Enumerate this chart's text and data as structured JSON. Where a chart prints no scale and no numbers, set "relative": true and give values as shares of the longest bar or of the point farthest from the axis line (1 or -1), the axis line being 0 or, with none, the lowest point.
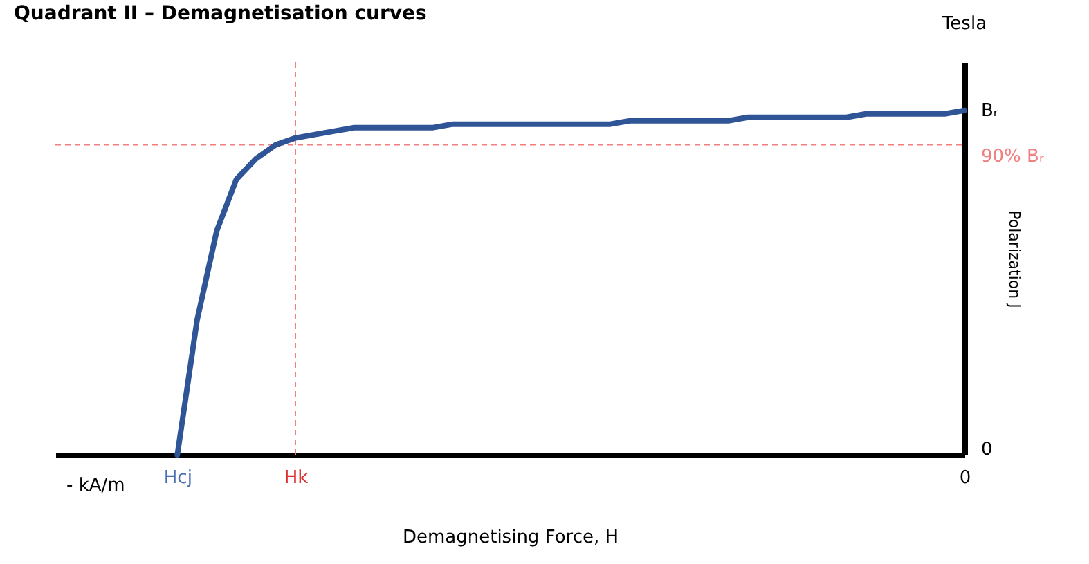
{
  "chart_data": {
    "type": "line",
    "title": "Quadrant II – Demagnetisation curves",
    "xlabel": "Demagnetising Force, H",
    "ylabel": "Polarization J",
    "relative": true,
    "categories": [
      "Hcj",
      null,
      null,
      null,
      null,
      null,
      "Hk",
      null,
      null,
      null,
      null,
      null,
      null,
      null,
      null,
      null,
      null,
      null,
      null,
      null,
      null,
      null,
      null,
      null,
      null,
      null,
      null,
      null,
      null,
      null,
      null,
      null,
      null,
      null,
      null,
      null,
      null,
      null,
      null,
      null,
      "0"
    ],
    "series": [
      {
        "color": "#2f5597",
        "marker": "none",
        "values": [
          0,
          0.39,
          0.65,
          0.8,
          0.86,
          0.9,
          0.92,
          0.93,
          0.94,
          0.95,
          0.95,
          0.95,
          0.95,
          0.95,
          0.96,
          0.96,
          0.96,
          0.96,
          0.96,
          0.96,
          0.96,
          0.96,
          0.96,
          0.97,
          0.97,
          0.97,
          0.97,
          0.97,
          0.97,
          0.98,
          0.98,
          0.98,
          0.98,
          0.98,
          0.98,
          0.99,
          0.99,
          0.99,
          0.99,
          0.99,
          1
        ]
      }
    ],
    "ref_lines": [
      {
        "axis": "x",
        "value": "Hk",
        "color": "#f08080",
        "line_style": "dashed"
      },
      {
        "axis": "y",
        "value": 0.9,
        "label": "90% Bᵣ",
        "color": "#f08080",
        "line_style": "dashed"
      }
    ],
    "annotations": [
      "Tesla",
      "- kA/m",
      "Bᵣ",
      "0"
    ],
    "grid": false
  }
}
